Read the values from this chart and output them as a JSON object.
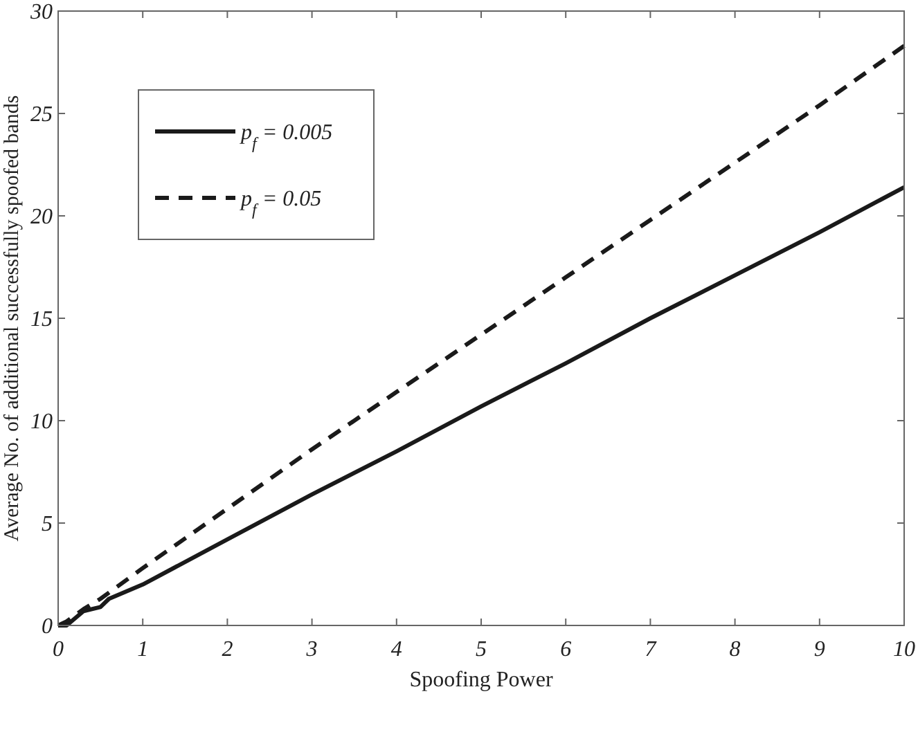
{
  "chart_data": {
    "type": "line",
    "xlabel": "Spoofing Power",
    "ylabel": "Average No. of additional successfully spoofed bands",
    "x": [
      0,
      0.1,
      0.3,
      0.5,
      0.6,
      1,
      2,
      3,
      4,
      5,
      6,
      7,
      8,
      9,
      10
    ],
    "series": [
      {
        "name": "p$_{f}$ = 0.005",
        "color": "#1a1a1a",
        "line_style": "solid",
        "values": [
          0,
          0,
          0.7,
          0.9,
          1.3,
          2.0,
          4.2,
          6.4,
          8.5,
          10.7,
          12.8,
          15.0,
          17.1,
          19.2,
          21.4
        ]
      },
      {
        "name": "p$_{f}$ = 0.05",
        "color": "#1a1a1a",
        "line_style": "dashed",
        "values": [
          0,
          0.2,
          0.8,
          1.3,
          1.6,
          2.8,
          5.7,
          8.6,
          11.4,
          14.2,
          17.0,
          19.8,
          22.6,
          25.4,
          28.3
        ]
      }
    ],
    "xlim": [
      0,
      10
    ],
    "xticks": [
      0,
      1,
      2,
      3,
      4,
      5,
      6,
      7,
      8,
      9,
      10
    ],
    "ylim": [
      0,
      30
    ],
    "yticks": [
      0,
      5,
      10,
      15,
      20,
      25,
      30
    ],
    "grid": false,
    "legend": "top left",
    "marker": "none"
  }
}
